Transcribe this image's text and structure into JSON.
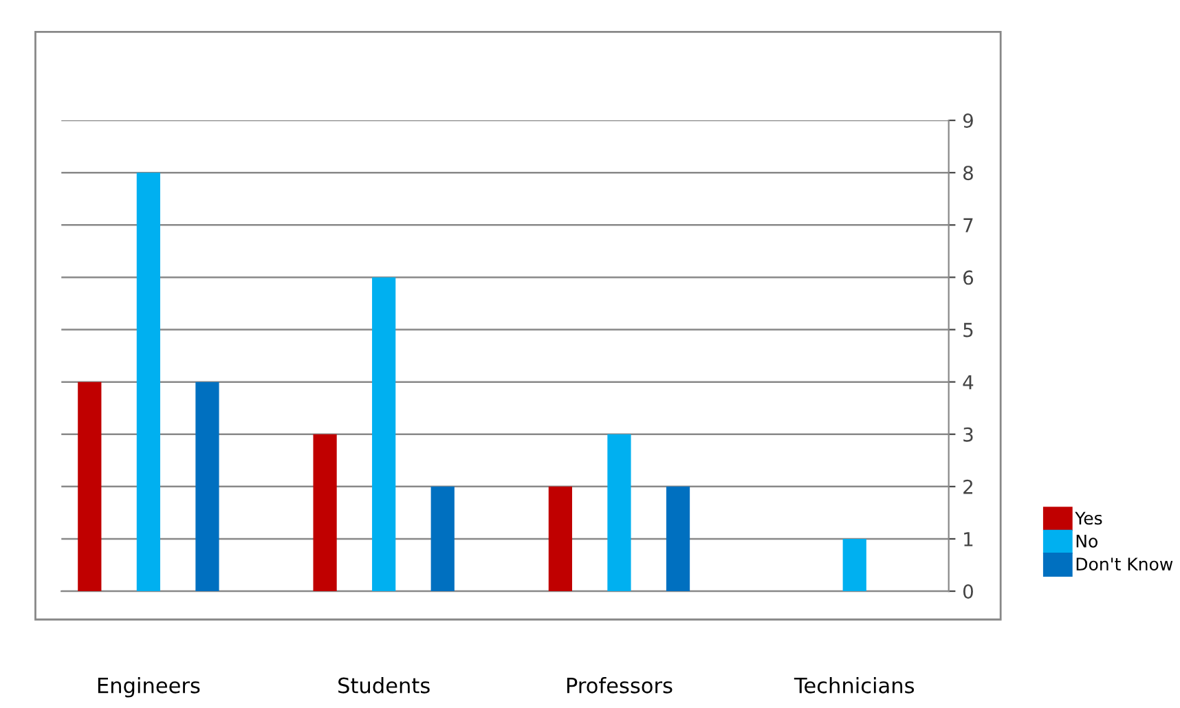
{
  "chart_data": {
    "type": "bar",
    "categories": [
      "Engineers",
      "Students",
      "Professors",
      "Technicians"
    ],
    "series": [
      {
        "name": "Yes",
        "color": "#c00000",
        "values": [
          4,
          3,
          2,
          0
        ]
      },
      {
        "name": "No",
        "color": "#00b0f0",
        "values": [
          8,
          6,
          3,
          1
        ]
      },
      {
        "name": "Don't Know",
        "color": "#0070c0",
        "values": [
          4,
          2,
          2,
          0
        ]
      }
    ],
    "ylim": [
      0,
      9
    ],
    "yticks": [
      0,
      1,
      2,
      3,
      4,
      5,
      6,
      7,
      8,
      9
    ],
    "grid": "y",
    "legend": "right"
  }
}
